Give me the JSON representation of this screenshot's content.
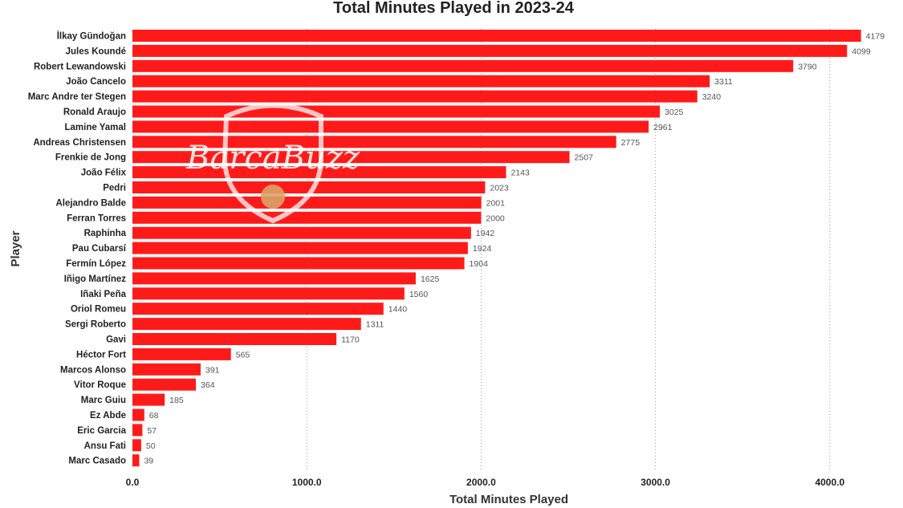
{
  "chart_data": {
    "type": "bar",
    "orientation": "horizontal",
    "title": "Total Minutes Played in 2023-24",
    "xlabel": "Total Minutes Played",
    "ylabel": "Player",
    "xlim": [
      0,
      4300
    ],
    "xticks": [
      0,
      1000,
      2000,
      3000,
      4000
    ],
    "xtick_labels": [
      "0.0",
      "1000.0",
      "2000.0",
      "3000.0",
      "4000.0"
    ],
    "grid": "vertical dotted",
    "bar_color": "#ff1a1a",
    "categories": [
      "İlkay Gündoğan",
      "Jules Koundé",
      "Robert Lewandowski",
      "João Cancelo",
      "Marc Andre ter Stegen",
      "Ronald Araujo",
      "Lamine Yamal",
      "Andreas Christensen",
      "Frenkie de Jong",
      "João Félix",
      "Pedri",
      "Alejandro Balde",
      "Ferran Torres",
      "Raphinha",
      "Pau Cubarsí",
      "Fermín López",
      "Iñigo Martínez",
      "Iñaki Peña",
      "Oriol Romeu",
      "Sergi Roberto",
      "Gavi",
      "Héctor Fort",
      "Marcos Alonso",
      "Vitor Roque",
      "Marc Guiu",
      "Ez Abde",
      "Eric Garcia",
      "Ansu Fati",
      "Marc Casado"
    ],
    "values": [
      4179,
      4099,
      3790,
      3311,
      3240,
      3025,
      2961,
      2775,
      2507,
      2143,
      2023,
      2001,
      2000,
      1942,
      1924,
      1904,
      1625,
      1560,
      1440,
      1311,
      1170,
      565,
      391,
      364,
      185,
      68,
      57,
      50,
      39
    ]
  },
  "watermark": {
    "text": "BarcaBuzz",
    "icon": "crest-with-ball-icon"
  }
}
